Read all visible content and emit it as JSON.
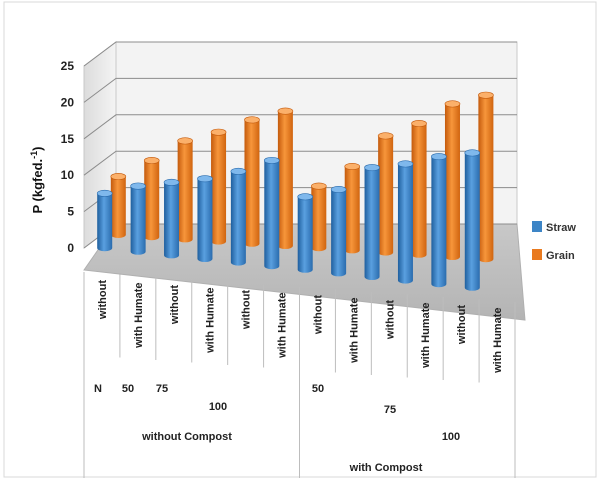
{
  "chart_data": {
    "type": "bar",
    "style": "3d-clustered-cylinder",
    "ylabel_main": "P  (kgfed.",
    "ylabel_sup": "-1",
    "ylabel_close": ")",
    "ylim": [
      0,
      25
    ],
    "yticks": [
      "0",
      "5",
      "10",
      "15",
      "20",
      "25"
    ],
    "grid": true,
    "legend_position": "right",
    "categories": [
      "without",
      "with Humate",
      "without",
      "with Humate",
      "without",
      "with Humate",
      "without",
      "with Humate",
      "without",
      "with Humate",
      "without",
      "with Humate"
    ],
    "level_labels": [
      "N",
      "50",
      "75",
      "100",
      "50",
      "75",
      "100"
    ],
    "group_labels": [
      "without Compost",
      "with Compost"
    ],
    "series": [
      {
        "name": "Straw",
        "color": "#3d85c6",
        "values": [
          7.5,
          9,
          10,
          11,
          12.5,
          14.5,
          10,
          11.5,
          15,
          16,
          17.5,
          18.5
        ]
      },
      {
        "name": "Grain",
        "color": "#e97a1f",
        "values": [
          8,
          10.5,
          13.5,
          15,
          17,
          18.5,
          8.5,
          11.5,
          16,
          18,
          21,
          22.5
        ]
      }
    ]
  }
}
